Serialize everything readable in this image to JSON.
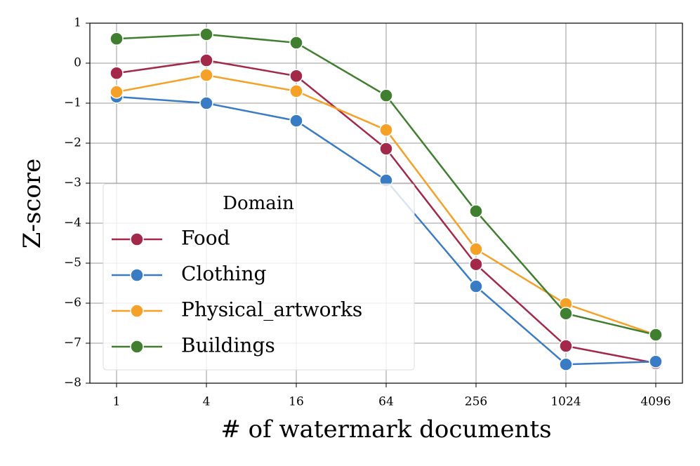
{
  "chart_data": {
    "type": "line",
    "x_label": "# of watermark documents",
    "y_label": "Z-score",
    "categories": [
      "1",
      "4",
      "16",
      "64",
      "256",
      "1024",
      "4096"
    ],
    "ylim": [
      -8,
      1
    ],
    "yticks": [
      1,
      0,
      {
        "value": -1,
        "label": "−1"
      },
      {
        "value": -2,
        "label": "−2"
      },
      {
        "value": -3,
        "label": "−3"
      },
      {
        "value": -4,
        "label": "−4"
      },
      {
        "value": -5,
        "label": "−5"
      },
      {
        "value": -6,
        "label": "−6"
      },
      {
        "value": -7,
        "label": "−7"
      },
      {
        "value": -8,
        "label": "−8"
      }
    ],
    "grid": true,
    "legend": "lower left",
    "legend_title": "Domain",
    "series": [
      {
        "name": "Food",
        "color": "#a2294a",
        "values": [
          -0.25,
          0.07,
          -0.32,
          -2.14,
          -5.03,
          -7.07,
          -7.5
        ]
      },
      {
        "name": "Clothing",
        "color": "#3a7cc4",
        "values": [
          -0.84,
          -1.0,
          -1.44,
          -2.93,
          -5.58,
          -7.53,
          -7.46
        ]
      },
      {
        "name": "Physical_artworks",
        "color": "#f5a027",
        "values": [
          -0.72,
          -0.3,
          -0.7,
          -1.67,
          -4.65,
          -6.02,
          -6.79
        ]
      },
      {
        "name": "Buildings",
        "color": "#3f7f2f",
        "values": [
          0.61,
          0.72,
          0.51,
          -0.81,
          -3.7,
          -6.26,
          -6.79
        ]
      }
    ]
  }
}
